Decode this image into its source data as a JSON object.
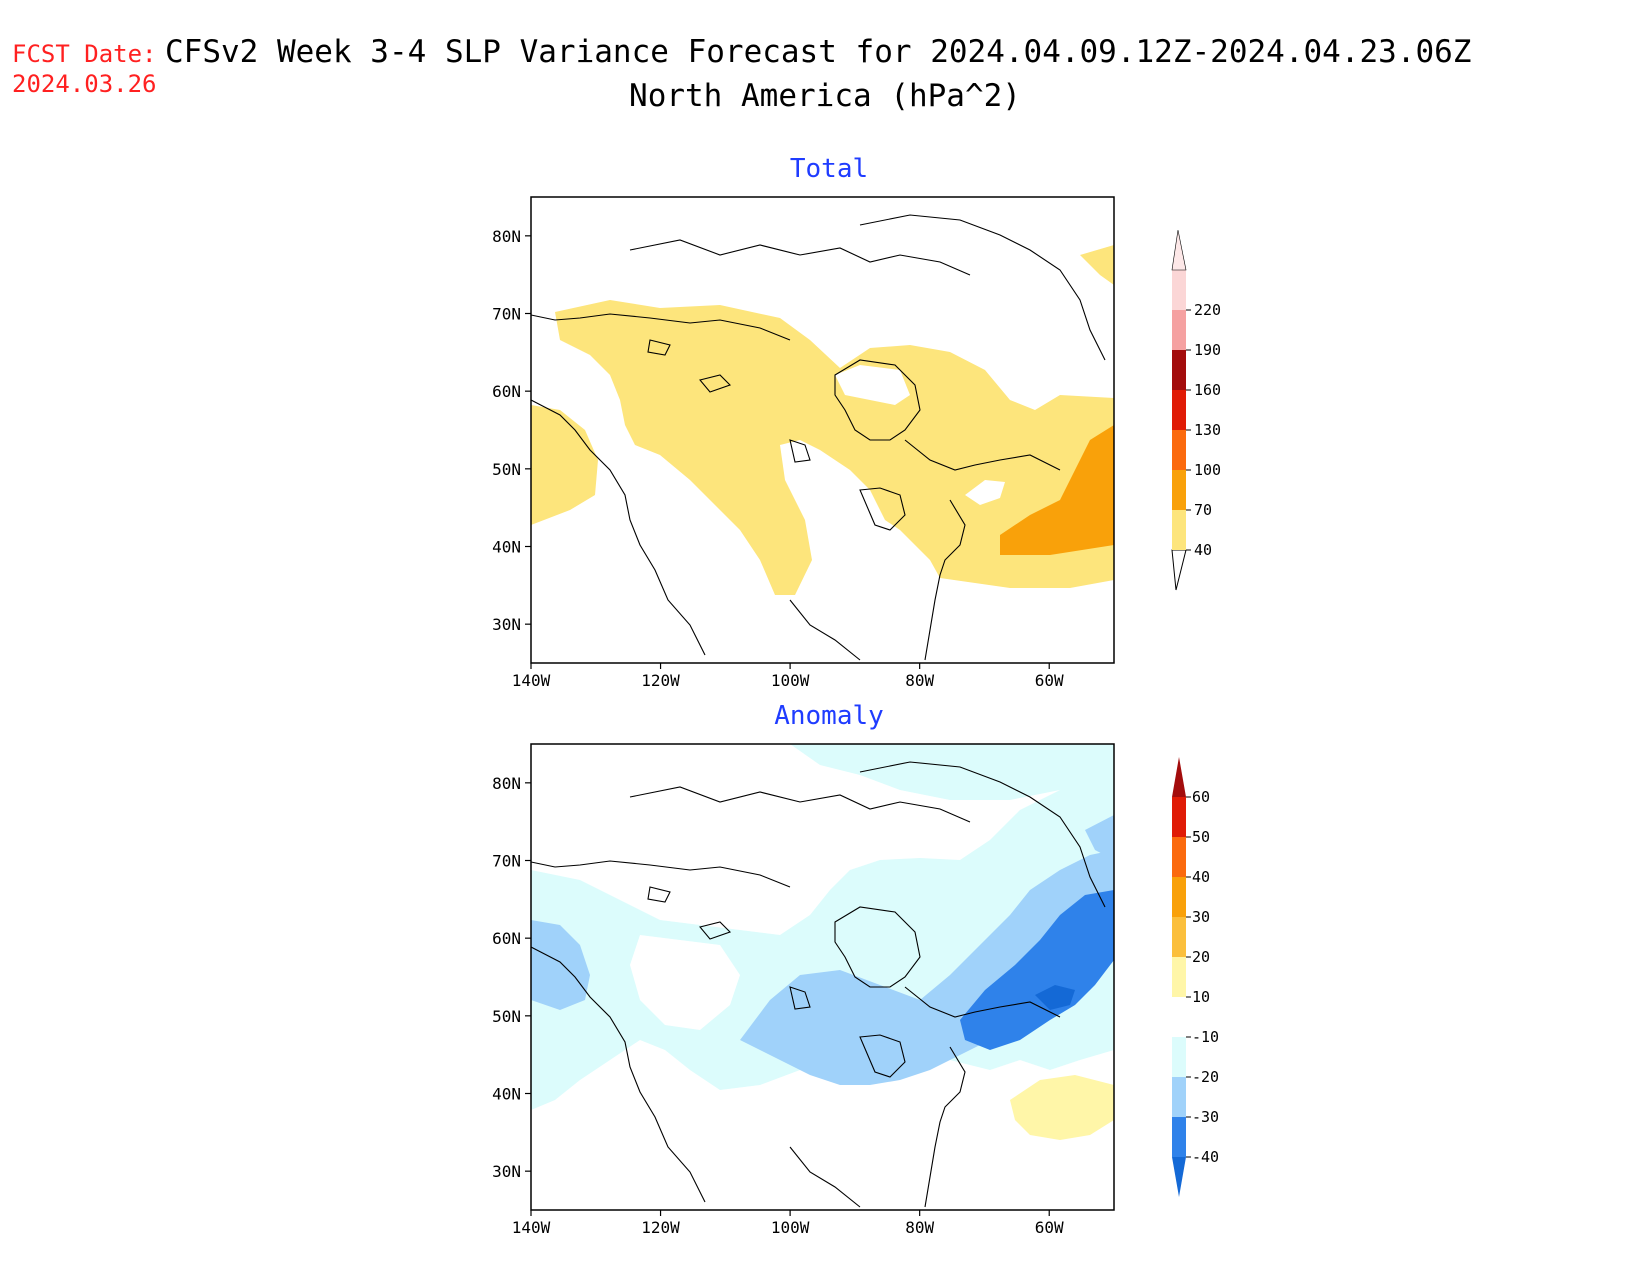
{
  "header": {
    "fcst_label": "FCST Date:",
    "fcst_date": "2024.03.26",
    "title_line1": "CFSv2 Week 3-4 SLP Variance Forecast for 2024.04.09.12Z-2024.04.23.06Z",
    "title_line2": "North America (hPa^2)"
  },
  "colors": {
    "fcst": "#ff2020",
    "panel_title": "#1f3cff",
    "coast": "#000000"
  },
  "axes": {
    "lat_labels": [
      "80N",
      "70N",
      "60N",
      "50N",
      "40N",
      "30N"
    ],
    "lat_values": [
      80,
      70,
      60,
      50,
      40,
      30
    ],
    "lon_labels": [
      "140W",
      "120W",
      "100W",
      "80W",
      "60W"
    ],
    "lon_values": [
      -140,
      -120,
      -100,
      -80,
      -60
    ],
    "lon_range": [
      -140,
      -50
    ],
    "lat_range": [
      25,
      85
    ]
  },
  "panels": [
    {
      "title": "Total",
      "colorbar": {
        "labels": [
          "40",
          "70",
          "100",
          "130",
          "160",
          "190",
          "220"
        ],
        "colors": [
          "#fde57c",
          "#f9a10a",
          "#fb6a0e",
          "#e01b06",
          "#a30c0c",
          "#f5a1a1",
          "#fbd6d6"
        ],
        "under": "#ffffff",
        "over": "#fde8e8"
      },
      "fills": [
        {
          "level": "40-70",
          "color": "#fde57c"
        },
        {
          "level": "70-100",
          "color": "#f9a10a"
        }
      ]
    },
    {
      "title": "Anomaly",
      "colorbar": {
        "labels": [
          "60",
          "50",
          "40",
          "30",
          "20",
          "10",
          "-10",
          "-20",
          "-30",
          "-40"
        ],
        "colors": [
          "#e01b06",
          "#fb6a0e",
          "#f9a10a",
          "#fbbf3c",
          "#fff6a8",
          "#ffffff",
          "#dcfcfc",
          "#a0d2fa",
          "#2f82ea"
        ],
        "over": "#a30c0c",
        "under": "#1469d6"
      },
      "fills": [
        {
          "level": "-20--10",
          "color": "#dcfcfc"
        },
        {
          "level": "-30--20",
          "color": "#a0d2fa"
        },
        {
          "level": "-40--30",
          "color": "#2f82ea"
        },
        {
          "level": "<-40",
          "color": "#1469d6"
        },
        {
          "level": "10-20",
          "color": "#fff6a8"
        }
      ]
    }
  ]
}
